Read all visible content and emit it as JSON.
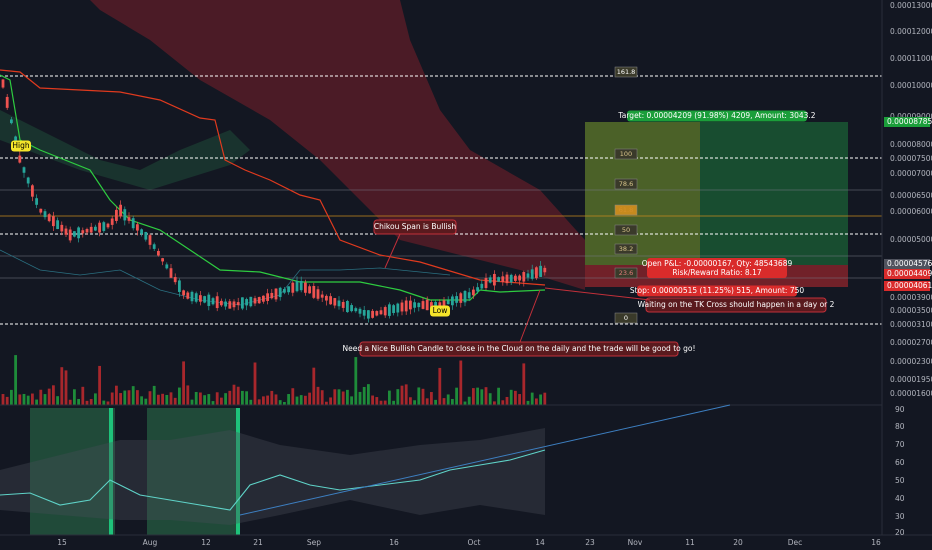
{
  "price_axis": [
    "0.00013000",
    "0.00012000",
    "0.00011000",
    "0.00010000",
    "0.00009000",
    "0.00008000",
    "0.00007500",
    "0.00007000",
    "0.00006500",
    "0.00006000",
    "0.00005000",
    "0.00003900",
    "0.00003500",
    "0.00003100",
    "0.00002700",
    "0.00002300",
    "0.00001950",
    "0.00001600"
  ],
  "price_tags": [
    {
      "label": "0.00008785",
      "color": "green"
    },
    {
      "label": "0.00004576",
      "color": "gray"
    },
    {
      "label": "0.00004409",
      "color": "red"
    },
    {
      "label": "0.00004061",
      "color": "red"
    }
  ],
  "indicator_axis": [
    "90",
    "80",
    "70",
    "60",
    "50",
    "40",
    "30",
    "20"
  ],
  "date_axis": [
    "15",
    "Aug",
    "12",
    "21",
    "Sep",
    "16",
    "Oct",
    "14",
    "23",
    "Nov",
    "11",
    "20",
    "Dec",
    "16"
  ],
  "fib_levels": [
    "161.8",
    "100",
    "78.6",
    "61.8",
    "50",
    "38.2",
    "23.6",
    "0"
  ],
  "annotations": {
    "high": "High",
    "low": "Low",
    "chikou": "Chikou Span is Bullish",
    "target": "Target: 0.00004209 (91.98%) 4209, Amount: 3043.2",
    "open_pl": "Open P&L: -0.00000167, Qty: 48543689",
    "risk_reward": "Risk/Reward Ratio: 8.17",
    "stop": "Stop: 0.00000515 (11.25%) 515, Amount: 750",
    "tk_cross": "Waiting on the TK Cross should happen in a day or 2",
    "candle_note": "Need a Nice Bullish Candle to close in the Cloud on the daily and the trade will be good to go!"
  }
}
